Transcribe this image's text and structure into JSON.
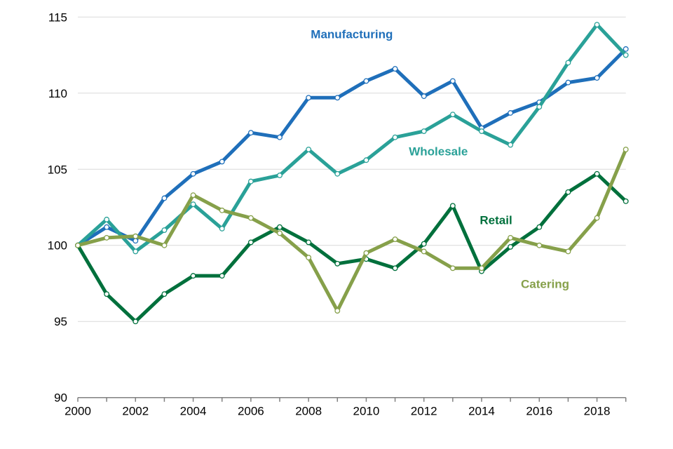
{
  "chart_data": {
    "type": "line",
    "title": "",
    "xlabel": "",
    "ylabel": "",
    "x": [
      2000,
      2001,
      2002,
      2003,
      2004,
      2005,
      2006,
      2007,
      2008,
      2009,
      2010,
      2011,
      2012,
      2013,
      2014,
      2015,
      2016,
      2017,
      2018,
      2019
    ],
    "xlim": [
      2000,
      2019
    ],
    "ylim": [
      90,
      115
    ],
    "y_ticks": [
      90,
      95,
      100,
      105,
      110,
      115
    ],
    "y_tick_labels": [
      "90",
      "95",
      "100",
      "105",
      "110",
      "115"
    ],
    "x_ticks": [
      2000,
      2001,
      2002,
      2003,
      2004,
      2005,
      2006,
      2007,
      2008,
      2009,
      2010,
      2011,
      2012,
      2013,
      2014,
      2015,
      2016,
      2017,
      2018,
      2019
    ],
    "x_tick_labels": [
      "2000",
      "",
      "2002",
      "",
      "2004",
      "",
      "2006",
      "",
      "2008",
      "",
      "2010",
      "",
      "2012",
      "",
      "2014",
      "",
      "2016",
      "",
      "2018",
      ""
    ],
    "grid": true,
    "legend": "inline labels",
    "series": [
      {
        "name": "Manufacturing",
        "color": "#1f6fba",
        "values": [
          100,
          101.2,
          100.3,
          103.1,
          104.7,
          105.5,
          107.4,
          107.1,
          109.7,
          109.7,
          110.8,
          111.6,
          109.8,
          110.8,
          107.7,
          108.7,
          109.4,
          110.7,
          111.0,
          112.9
        ],
        "label_at": {
          "x": 2009.5,
          "y": 113.6
        }
      },
      {
        "name": "Wholesale",
        "color": "#2aa198",
        "values": [
          100,
          101.7,
          99.6,
          101.0,
          102.7,
          101.1,
          104.2,
          104.6,
          106.3,
          104.7,
          105.6,
          107.1,
          107.5,
          108.6,
          107.5,
          106.6,
          109.1,
          112.0,
          114.5,
          112.5
        ],
        "label_at": {
          "x": 2012.5,
          "y": 105.9
        }
      },
      {
        "name": "Retail",
        "color": "#00703c",
        "values": [
          100,
          96.8,
          95.0,
          96.8,
          98.0,
          98.0,
          100.2,
          101.2,
          100.2,
          98.8,
          99.1,
          98.5,
          100.1,
          102.6,
          98.3,
          99.9,
          101.2,
          103.5,
          104.7,
          102.9
        ],
        "label_at": {
          "x": 2014.5,
          "y": 101.4
        }
      },
      {
        "name": "Catering",
        "color": "#86a04a",
        "values": [
          100,
          100.5,
          100.6,
          100.0,
          103.3,
          102.3,
          101.8,
          100.8,
          99.2,
          95.7,
          99.5,
          100.4,
          99.6,
          98.5,
          98.5,
          100.5,
          100.0,
          99.6,
          101.8,
          106.3
        ],
        "label_at": {
          "x": 2016.2,
          "y": 97.2
        }
      }
    ]
  }
}
